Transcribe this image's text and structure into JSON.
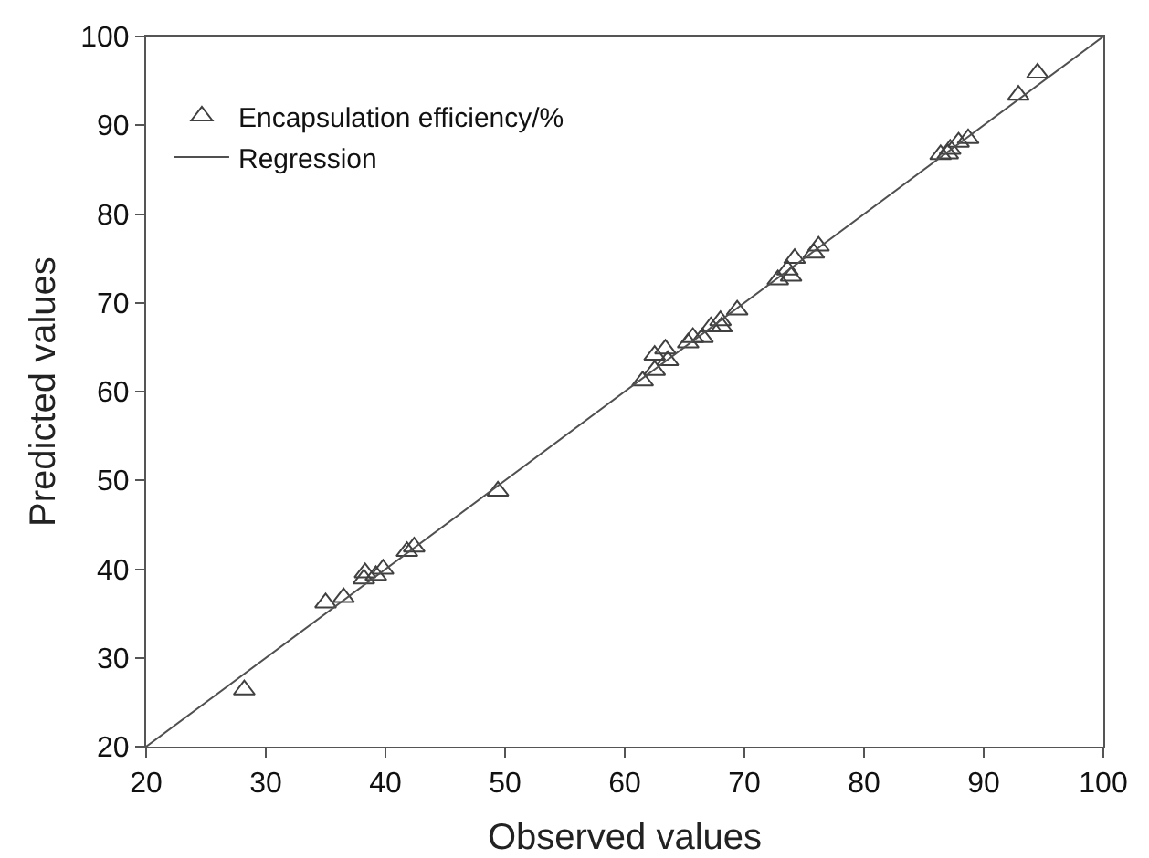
{
  "chart_data": {
    "type": "scatter",
    "xlabel": "Observed values",
    "ylabel": "Predicted values",
    "xlim": [
      20,
      100
    ],
    "ylim": [
      20,
      100
    ],
    "xticks": [
      20,
      30,
      40,
      50,
      60,
      70,
      80,
      90,
      100
    ],
    "yticks": [
      20,
      30,
      40,
      50,
      60,
      70,
      80,
      90,
      100
    ],
    "grid": false,
    "legend": "top left",
    "marker": "triangle",
    "series": [
      {
        "name": "Encapsulation efficiency/%",
        "color": "#404040",
        "x": [
          28.2,
          35,
          36.5,
          38.2,
          38.3,
          39.2,
          39.8,
          41.8,
          42.4,
          49.4,
          61.5,
          62.5,
          62.5,
          63.4,
          63.6,
          65.3,
          65.7,
          66.5,
          67.2,
          68,
          68.1,
          69.4,
          72.8,
          73.6,
          73.9,
          74.2,
          75.8,
          76.2,
          86.4,
          87,
          87.2,
          87.9,
          88.7,
          92.9,
          94.5
        ],
        "values": [
          26.4,
          36.2,
          36.8,
          38.9,
          39.6,
          39.3,
          40,
          42,
          42.5,
          48.8,
          61.2,
          62.4,
          64.1,
          64.8,
          63.5,
          65.5,
          66.1,
          66.1,
          67.3,
          68,
          67.3,
          69.2,
          72.6,
          73.7,
          73,
          75,
          75.6,
          76.4,
          86.7,
          86.8,
          87.3,
          88.1,
          88.5,
          93.4,
          95.9
        ]
      },
      {
        "name": "Regression",
        "type": "line",
        "color": "#505050",
        "marker": "none",
        "line_style": "solid",
        "x": [
          20,
          100
        ],
        "values": [
          20,
          100
        ]
      }
    ]
  }
}
